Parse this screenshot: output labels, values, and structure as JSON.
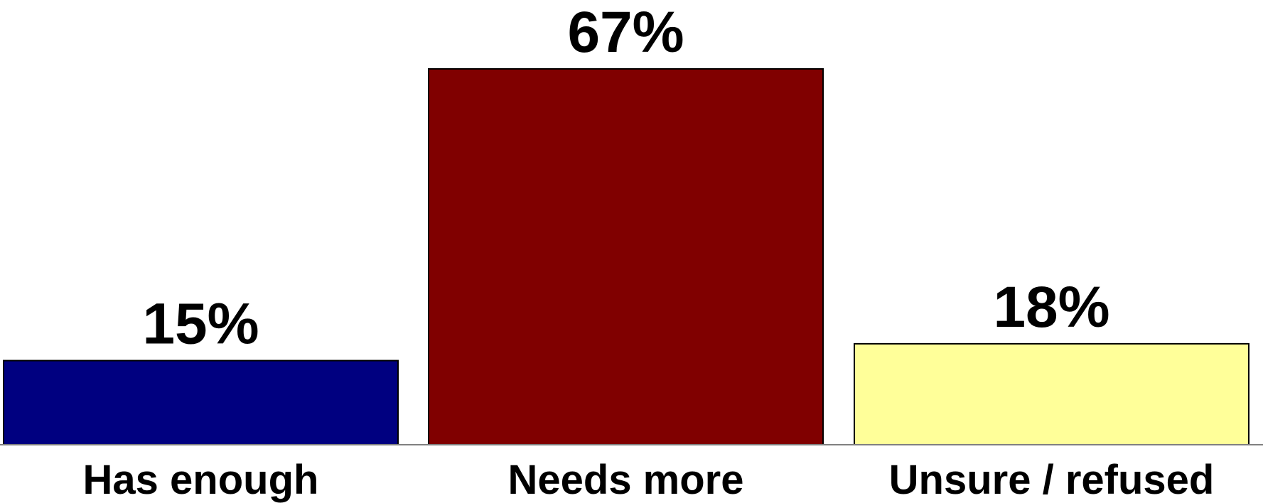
{
  "chart_data": {
    "type": "bar",
    "categories": [
      "Has enough",
      "Needs more",
      "Unsure / refused"
    ],
    "values": [
      15,
      67,
      18
    ],
    "value_labels": [
      "15%",
      "67%",
      "18%"
    ],
    "colors": [
      "#000080",
      "#800000",
      "#FFFF99"
    ],
    "ylim": [
      0,
      67
    ],
    "grid": false,
    "legend": "none",
    "title": "",
    "xlabel": "",
    "ylabel": ""
  }
}
